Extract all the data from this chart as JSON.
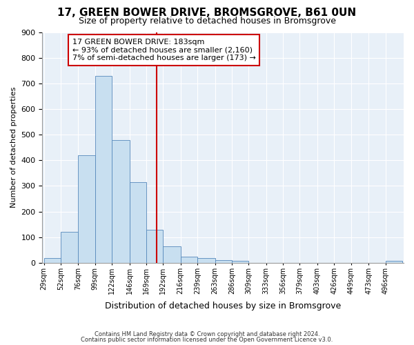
{
  "title": "17, GREEN BOWER DRIVE, BROMSGROVE, B61 0UN",
  "subtitle": "Size of property relative to detached houses in Bromsgrove",
  "xlabel": "Distribution of detached houses by size in Bromsgrove",
  "ylabel": "Number of detached properties",
  "bin_edges": [
    29,
    52,
    76,
    99,
    122,
    146,
    169,
    192,
    216,
    239,
    263,
    286,
    309,
    333,
    356,
    379,
    403,
    426,
    449,
    473,
    496
  ],
  "bin_labels": [
    "29sqm",
    "52sqm",
    "76sqm",
    "99sqm",
    "122sqm",
    "146sqm",
    "169sqm",
    "192sqm",
    "216sqm",
    "239sqm",
    "263sqm",
    "286sqm",
    "309sqm",
    "333sqm",
    "356sqm",
    "379sqm",
    "403sqm",
    "426sqm",
    "449sqm",
    "473sqm",
    "496sqm"
  ],
  "bar_heights": [
    20,
    120,
    420,
    730,
    480,
    315,
    130,
    65,
    25,
    20,
    10,
    8,
    0,
    0,
    0,
    0,
    0,
    0,
    0,
    0,
    8
  ],
  "vline_x": 183,
  "bar_color": "#c8dff0",
  "bar_edge_color": "#5588bb",
  "vline_color": "#cc0000",
  "annotation_line1": "17 GREEN BOWER DRIVE: 183sqm",
  "annotation_line2": "← 93% of detached houses are smaller (2,160)",
  "annotation_line3": "7% of semi-detached houses are larger (173) →",
  "annotation_box_color": "#ffffff",
  "annotation_box_edge": "#cc0000",
  "ylim": [
    0,
    900
  ],
  "yticks": [
    0,
    100,
    200,
    300,
    400,
    500,
    600,
    700,
    800,
    900
  ],
  "footer_line1": "Contains HM Land Registry data © Crown copyright and database right 2024.",
  "footer_line2": "Contains public sector information licensed under the Open Government Licence v3.0.",
  "bg_color": "#e8f0f8"
}
